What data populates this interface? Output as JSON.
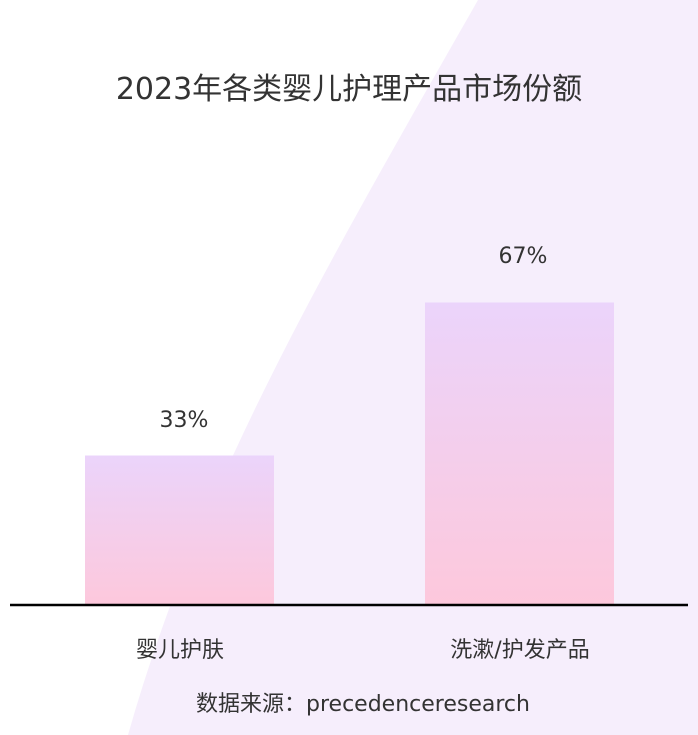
{
  "chart_data": {
    "type": "bar",
    "title": "2023年各类婴儿护理产品市场份额",
    "categories": [
      "婴儿护肤",
      "洗漱/护发产品"
    ],
    "values": [
      33,
      67
    ],
    "data_labels": [
      "33%",
      "67%"
    ],
    "unit": "%",
    "ylim": [
      0,
      100
    ],
    "grid": false,
    "legend": "none",
    "colors": {
      "bar_top": "#ebd4fb",
      "bar_bottom": "#fdc8dc",
      "axis": "#000000",
      "background_shape": "#f6eefc"
    }
  },
  "source": "数据来源：precedenceresearch"
}
